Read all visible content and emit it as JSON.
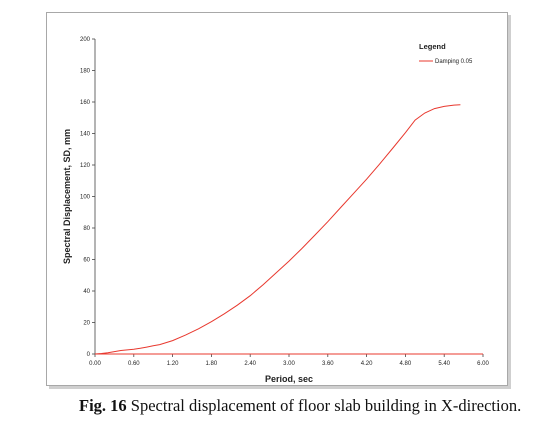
{
  "chart_data": {
    "type": "line",
    "xlabel": "Period, sec",
    "ylabel": "Spectral Displacement, SD, mm",
    "xlim": [
      0,
      6
    ],
    "ylim": [
      0,
      200
    ],
    "x_ticks": [
      "0.00",
      "0.60",
      "1.20",
      "1.80",
      "2.40",
      "3.00",
      "3.60",
      "4.20",
      "4.80",
      "5.40",
      "6.00"
    ],
    "y_ticks": [
      "0",
      "20",
      "40",
      "60",
      "80",
      "100",
      "120",
      "140",
      "160",
      "180",
      "200"
    ],
    "legend_title": "Legend",
    "legend_position": "top-right",
    "grid": false,
    "series": [
      {
        "name": "Damping 0.05",
        "color": "#e8382e",
        "x": [
          0.0,
          0.1,
          0.2,
          0.3,
          0.4,
          0.5,
          0.6,
          0.7,
          0.8,
          0.9,
          1.0,
          1.2,
          1.4,
          1.6,
          1.8,
          2.0,
          2.2,
          2.4,
          2.6,
          2.8,
          3.0,
          3.2,
          3.4,
          3.6,
          3.8,
          4.0,
          4.2,
          4.4,
          4.6,
          4.8,
          4.95,
          5.1,
          5.25,
          5.4,
          5.55,
          5.65
        ],
        "y": [
          0,
          0.3,
          0.8,
          1.5,
          2.2,
          2.6,
          3.0,
          3.6,
          4.4,
          5.2,
          6.0,
          8.5,
          12.0,
          16.0,
          20.5,
          25.5,
          31.0,
          37.0,
          44.0,
          51.5,
          59.0,
          67.0,
          75.5,
          84.0,
          93.0,
          102.0,
          111.0,
          120.5,
          130.5,
          140.5,
          148.5,
          153.0,
          155.8,
          157.2,
          158.0,
          158.2
        ]
      }
    ]
  },
  "caption": {
    "label": "Fig. 16",
    "text": "Spectral displacement of floor slab building in X-direction."
  }
}
